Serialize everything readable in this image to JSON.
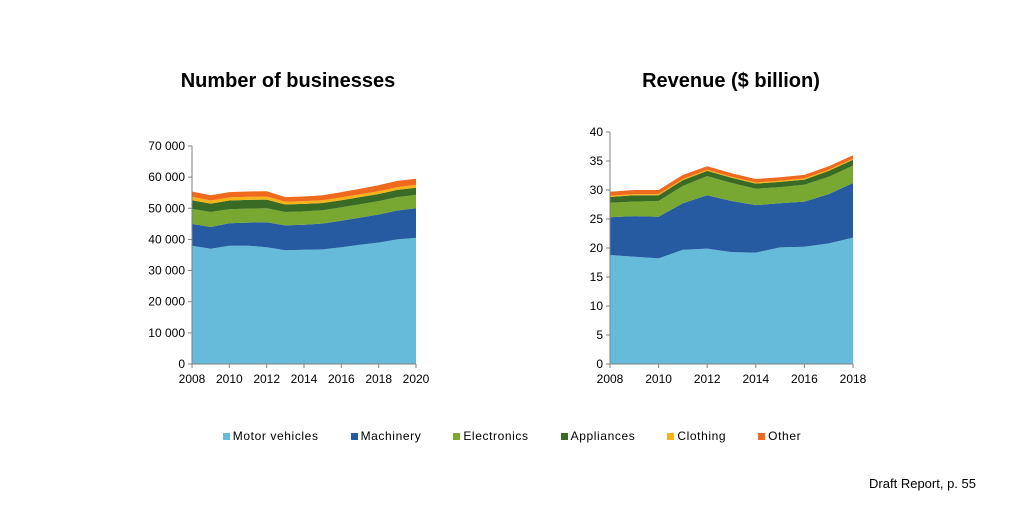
{
  "chart_data": [
    {
      "type": "area",
      "stacked": true,
      "title": "Number of businesses",
      "x": [
        2008,
        2009,
        2010,
        2011,
        2012,
        2013,
        2014,
        2015,
        2016,
        2017,
        2018,
        2019,
        2020
      ],
      "xticks": [
        2008,
        2010,
        2012,
        2014,
        2016,
        2018,
        2020
      ],
      "ylim": [
        0,
        70000
      ],
      "yticks": [
        0,
        10000,
        20000,
        30000,
        40000,
        50000,
        60000,
        70000
      ],
      "ytick_labels": [
        "0",
        "10 000",
        "20 000",
        "30 000",
        "40 000",
        "50 000",
        "60 000",
        "70 000"
      ],
      "series": [
        {
          "name": "Motor vehicles",
          "values": [
            38000,
            37000,
            38000,
            38000,
            37500,
            36500,
            36700,
            36800,
            37500,
            38300,
            39000,
            40000,
            40500
          ]
        },
        {
          "name": "Machinery",
          "values": [
            7000,
            7000,
            7200,
            7400,
            8000,
            8000,
            8000,
            8300,
            8500,
            8700,
            9000,
            9300,
            9500
          ]
        },
        {
          "name": "Electronics",
          "values": [
            4800,
            4800,
            4500,
            4500,
            4500,
            4300,
            4300,
            4300,
            4300,
            4300,
            4300,
            4300,
            4300
          ]
        },
        {
          "name": "Appliances",
          "values": [
            2800,
            2700,
            2800,
            2800,
            2800,
            2400,
            2400,
            2300,
            2300,
            2300,
            2300,
            2300,
            2300
          ]
        },
        {
          "name": "Clothing",
          "values": [
            1100,
            1000,
            1000,
            1000,
            1000,
            900,
            900,
            900,
            900,
            900,
            900,
            900,
            900
          ]
        },
        {
          "name": "Other",
          "values": [
            1700,
            1700,
            1700,
            1700,
            1700,
            1500,
            1500,
            1600,
            1700,
            1800,
            1900,
            2000,
            2000
          ]
        }
      ]
    },
    {
      "type": "area",
      "stacked": true,
      "title": "Revenue ($ billion)",
      "x": [
        2008,
        2009,
        2010,
        2011,
        2012,
        2013,
        2014,
        2015,
        2016,
        2017,
        2018
      ],
      "xticks": [
        2008,
        2010,
        2012,
        2014,
        2016,
        2018
      ],
      "ylim": [
        0,
        40
      ],
      "yticks": [
        0,
        5,
        10,
        15,
        20,
        25,
        30,
        35,
        40
      ],
      "ytick_labels": [
        "0",
        "5",
        "10",
        "15",
        "20",
        "25",
        "30",
        "35",
        "40"
      ],
      "series": [
        {
          "name": "Motor vehicles",
          "values": [
            18.8,
            18.5,
            18.2,
            19.7,
            19.9,
            19.3,
            19.2,
            20.1,
            20.2,
            20.8,
            21.8
          ]
        },
        {
          "name": "Machinery",
          "values": [
            6.5,
            7.0,
            7.2,
            8.0,
            9.2,
            8.8,
            8.2,
            7.6,
            7.8,
            8.5,
            9.4
          ]
        },
        {
          "name": "Electronics",
          "values": [
            2.5,
            2.5,
            2.7,
            3.0,
            3.3,
            3.1,
            2.8,
            2.8,
            2.9,
            3.0,
            3.0
          ]
        },
        {
          "name": "Appliances",
          "values": [
            1.0,
            1.1,
            1.0,
            1.0,
            0.9,
            0.9,
            0.9,
            0.9,
            0.9,
            1.0,
            1.0
          ]
        },
        {
          "name": "Clothing",
          "values": [
            0.2,
            0.2,
            0.2,
            0.2,
            0.2,
            0.2,
            0.2,
            0.2,
            0.2,
            0.2,
            0.2
          ]
        },
        {
          "name": "Other",
          "values": [
            0.7,
            0.7,
            0.7,
            0.7,
            0.6,
            0.6,
            0.6,
            0.6,
            0.6,
            0.6,
            0.6
          ]
        }
      ]
    }
  ],
  "legend": {
    "items": [
      {
        "label": "Motor vehicles",
        "color": "#66bbdb"
      },
      {
        "label": "Machinery",
        "color": "#265aa1"
      },
      {
        "label": "Electronics",
        "color": "#78a832"
      },
      {
        "label": "Appliances",
        "color": "#3a6b25"
      },
      {
        "label": "Clothing",
        "color": "#f7b418"
      },
      {
        "label": "Other",
        "color": "#f06a1e"
      }
    ]
  },
  "footer": {
    "note": "Draft Report, p. 55"
  }
}
